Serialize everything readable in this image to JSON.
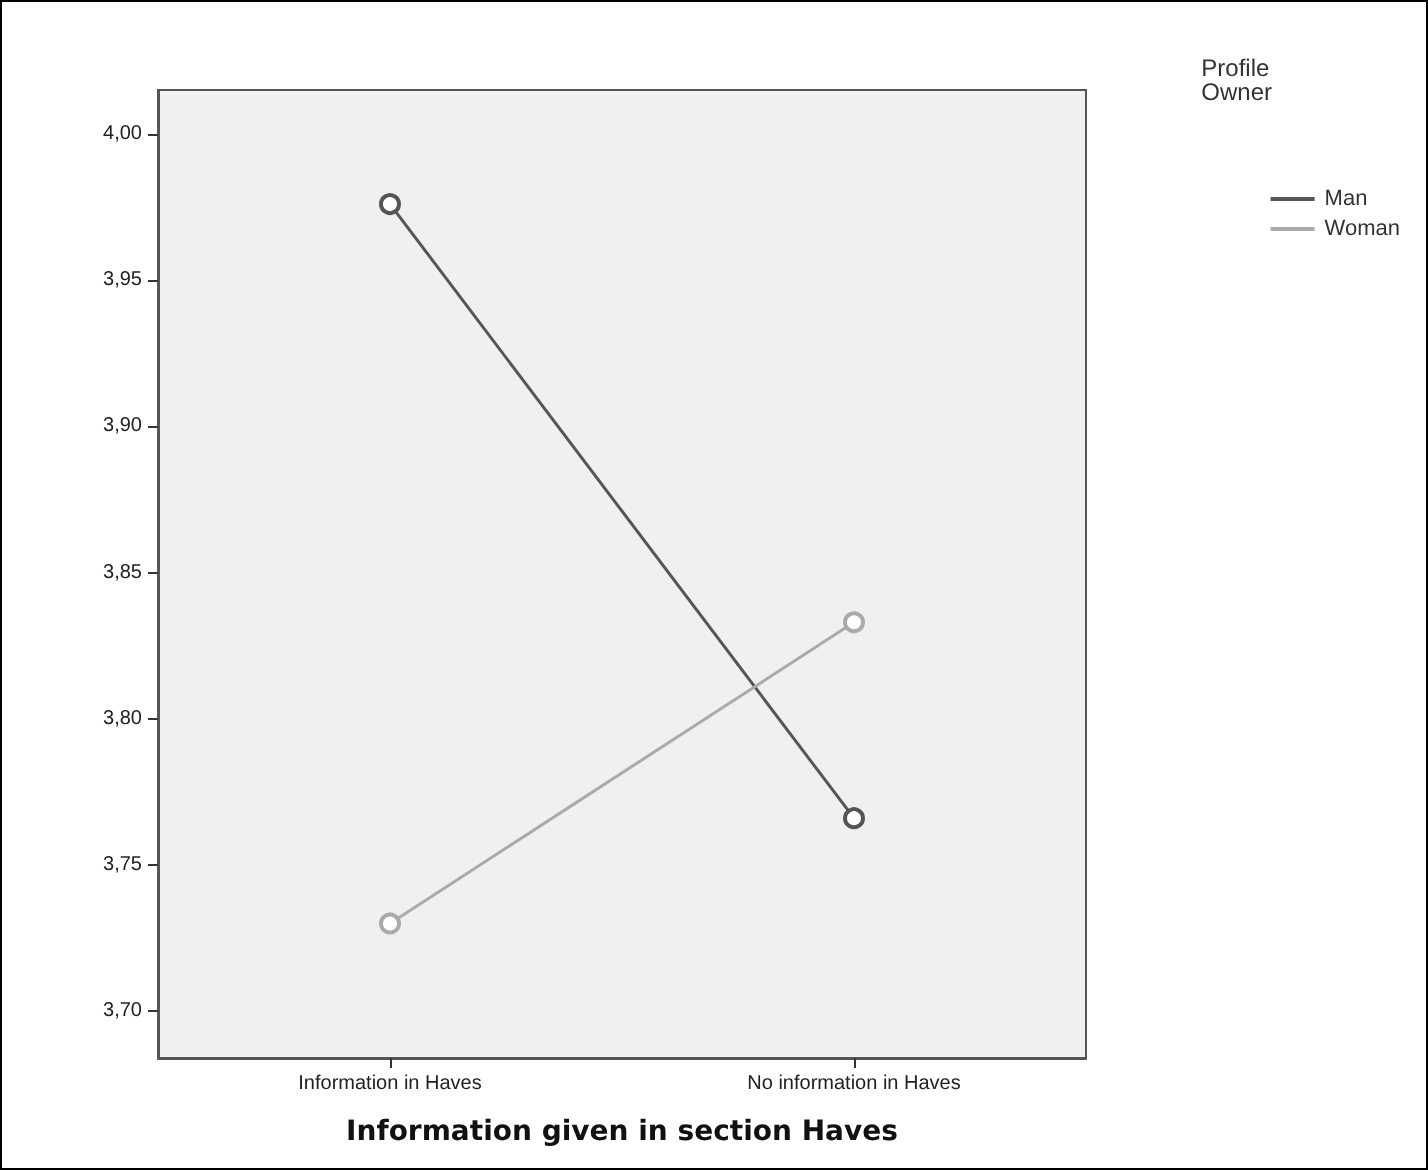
{
  "chart_data": {
    "type": "line",
    "xlabel": "Information given in section Haves",
    "legend_title": "Profile Owner",
    "categories": [
      "Information in Haves",
      "No information in Haves"
    ],
    "series": [
      {
        "name": "Man",
        "color": "#555555",
        "values": [
          3.976,
          3.766
        ]
      },
      {
        "name": "Woman",
        "color": "#aaaaaa",
        "values": [
          3.73,
          3.833
        ]
      }
    ],
    "ylim": [
      3.684,
      4.015
    ],
    "yticks": [
      {
        "value": 3.7,
        "label": "3,70"
      },
      {
        "value": 3.75,
        "label": "3,75"
      },
      {
        "value": 3.8,
        "label": "3,80"
      },
      {
        "value": 3.85,
        "label": "3,85"
      },
      {
        "value": 3.9,
        "label": "3,90"
      },
      {
        "value": 3.95,
        "label": "3,95"
      },
      {
        "value": 4.0,
        "label": "4,00"
      }
    ],
    "grid": false,
    "legend": "top right",
    "marker": "circle",
    "line_style": "solid"
  }
}
